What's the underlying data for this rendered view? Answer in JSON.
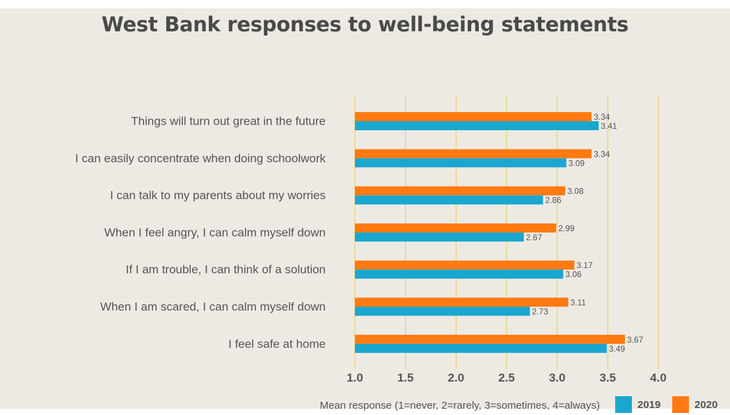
{
  "chart_data": {
    "type": "bar",
    "orientation": "horizontal",
    "title": "West Bank responses to well-being statements",
    "xlabel": "Mean response (1=never, 2=rarely, 3=sometimes, 4=always)",
    "ylabel": "",
    "xlim": [
      1.0,
      4.0
    ],
    "xticks": [
      "1.0",
      "1.5",
      "2.0",
      "2.5",
      "3.0",
      "3.5",
      "4.0"
    ],
    "grid": "vertical",
    "legend_position": "bottom-right",
    "categories": [
      "Things will turn out great in the future",
      "I can easily concentrate when doing schoolwork",
      "I can talk to my parents about my worries",
      "When I feel angry, I can calm myself down",
      "If I am trouble, I can think of a solution",
      "When I am scared, I can calm myself down",
      "I feel safe at home"
    ],
    "series": [
      {
        "name": "2019",
        "color": "#1aa7cf",
        "values": [
          3.41,
          3.09,
          2.86,
          2.67,
          3.06,
          2.73,
          3.49
        ],
        "labels": [
          "3.41",
          "3.09",
          "2.86",
          "2.67",
          "3.06",
          "2.73",
          "3.49"
        ]
      },
      {
        "name": "2020",
        "color": "#ff7a12",
        "values": [
          3.34,
          3.34,
          3.08,
          2.99,
          3.17,
          3.11,
          3.67
        ],
        "labels": [
          "3.34",
          "3.34",
          "3.08",
          "2.99",
          "3.17",
          "3.11",
          "3.67"
        ]
      }
    ]
  },
  "colors": {
    "background": "#edeae4",
    "gridline": "#f2c84b",
    "text": "#555555"
  }
}
